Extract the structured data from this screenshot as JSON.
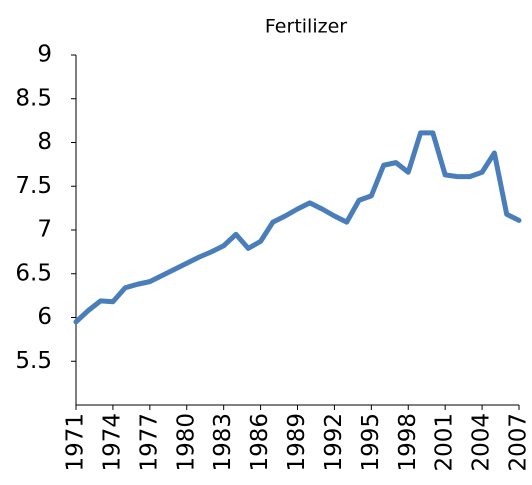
{
  "chart_data": {
    "type": "line",
    "title": "Fertilizer",
    "x": [
      1971,
      1972,
      1973,
      1974,
      1975,
      1976,
      1977,
      1978,
      1979,
      1980,
      1981,
      1982,
      1983,
      1984,
      1985,
      1986,
      1987,
      1988,
      1989,
      1990,
      1991,
      1992,
      1993,
      1994,
      1995,
      1996,
      1997,
      1998,
      1999,
      2000,
      2001,
      2002,
      2003,
      2004,
      2005,
      2006,
      2007
    ],
    "values": [
      5.95,
      6.08,
      6.19,
      6.18,
      6.34,
      6.38,
      6.41,
      6.48,
      6.55,
      6.62,
      6.69,
      6.75,
      6.82,
      6.95,
      6.79,
      6.87,
      7.09,
      7.16,
      7.24,
      7.31,
      7.24,
      7.16,
      7.09,
      7.34,
      7.39,
      7.74,
      7.77,
      7.66,
      8.11,
      8.11,
      7.63,
      7.61,
      7.61,
      7.66,
      7.88,
      7.18,
      7.11
    ],
    "color": "#4a7ebb",
    "xlim": [
      1971,
      2007
    ],
    "xticks": [
      1971,
      1974,
      1977,
      1980,
      1983,
      1986,
      1989,
      1992,
      1995,
      1998,
      2001,
      2004,
      2007
    ],
    "ylim": [
      5,
      9
    ],
    "yticks": [
      5.5,
      6,
      6.5,
      7,
      7.5,
      8,
      8.5,
      9
    ]
  }
}
